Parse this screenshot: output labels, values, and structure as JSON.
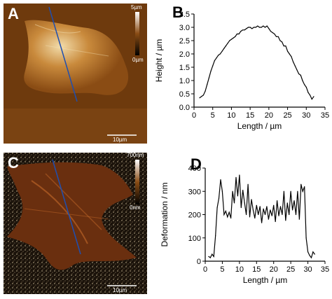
{
  "panels": {
    "a": {
      "letter": "A",
      "colorbar_max": "5µm",
      "colorbar_min": "0µm",
      "scale_bar": "10µm",
      "colors": {
        "dark": "#3a1d06",
        "mid": "#9b5a1c",
        "light": "#e8c88a"
      }
    },
    "b": {
      "letter": "B"
    },
    "c": {
      "letter": "C",
      "colorbar_max": "700nm",
      "colorbar_min": "0nm",
      "scale_bar": "10µm",
      "colors": {
        "dark": "#1a0d05",
        "mid": "#7a3a12",
        "light": "#f0d8a8"
      }
    },
    "d": {
      "letter": "D"
    }
  },
  "chart_data": [
    {
      "type": "line",
      "xlabel": "Length / µm",
      "ylabel": "Height / µm",
      "xlim": [
        0,
        35
      ],
      "ylim": [
        0,
        3.5
      ],
      "xticks": [
        0,
        5,
        10,
        15,
        20,
        25,
        30,
        35
      ],
      "yticks": [
        0.0,
        0.5,
        1.0,
        1.5,
        2.0,
        2.5,
        3.0,
        3.5
      ],
      "ytick_labels": [
        "0.0",
        "0.5",
        "1.0",
        "1.5",
        "2.0",
        "2.5",
        "3.0",
        "3.5"
      ],
      "x": [
        1.5,
        2.0,
        2.5,
        3.0,
        3.5,
        4.0,
        4.5,
        5.0,
        5.5,
        6.0,
        6.5,
        7.0,
        7.5,
        8.0,
        8.5,
        9.0,
        9.5,
        10.0,
        10.5,
        11.0,
        11.5,
        12.0,
        12.5,
        13.0,
        13.5,
        14.0,
        14.5,
        15.0,
        15.5,
        16.0,
        16.5,
        17.0,
        17.5,
        18.0,
        18.5,
        19.0,
        19.5,
        20.0,
        20.5,
        21.0,
        21.5,
        22.0,
        22.5,
        23.0,
        23.5,
        24.0,
        24.5,
        25.0,
        25.5,
        26.0,
        26.5,
        27.0,
        27.5,
        28.0,
        28.5,
        29.0,
        29.5,
        30.0,
        30.5,
        31.0,
        31.5,
        32.0
      ],
      "y": [
        0.35,
        0.4,
        0.45,
        0.6,
        0.85,
        1.1,
        1.35,
        1.55,
        1.75,
        1.85,
        1.95,
        2.0,
        2.1,
        2.2,
        2.3,
        2.4,
        2.5,
        2.55,
        2.6,
        2.65,
        2.75,
        2.75,
        2.85,
        2.9,
        2.9,
        2.95,
        3.0,
        3.0,
        2.95,
        3.0,
        3.0,
        3.05,
        3.0,
        3.0,
        3.05,
        3.0,
        3.05,
        2.95,
        2.85,
        2.8,
        2.75,
        2.65,
        2.65,
        2.5,
        2.45,
        2.3,
        2.3,
        2.1,
        2.0,
        1.9,
        1.7,
        1.55,
        1.4,
        1.25,
        1.2,
        1.0,
        0.85,
        0.75,
        0.55,
        0.45,
        0.3,
        0.4
      ]
    },
    {
      "type": "line",
      "xlabel": "Length / µm",
      "ylabel": "Deformation / nm",
      "xlim": [
        0,
        35
      ],
      "ylim": [
        0,
        400
      ],
      "xticks": [
        0,
        5,
        10,
        15,
        20,
        25,
        30,
        35
      ],
      "yticks": [
        0,
        100,
        200,
        300,
        400
      ],
      "ytick_labels": [
        "0",
        "100",
        "200",
        "300",
        "400"
      ],
      "x": [
        1.0,
        1.5,
        2.0,
        2.5,
        3.0,
        3.5,
        4.0,
        4.5,
        5.0,
        5.5,
        6.0,
        6.5,
        7.0,
        7.5,
        8.0,
        8.5,
        9.0,
        9.5,
        10.0,
        10.5,
        11.0,
        11.5,
        12.0,
        12.5,
        13.0,
        13.5,
        14.0,
        14.5,
        15.0,
        15.5,
        16.0,
        16.5,
        17.0,
        17.5,
        18.0,
        18.5,
        19.0,
        19.5,
        20.0,
        20.5,
        21.0,
        21.5,
        22.0,
        22.5,
        23.0,
        23.5,
        24.0,
        24.5,
        25.0,
        25.5,
        26.0,
        26.5,
        27.0,
        27.5,
        28.0,
        28.5,
        29.0,
        29.5,
        30.0,
        30.5,
        31.0,
        31.5,
        32.0
      ],
      "y": [
        20,
        15,
        30,
        20,
        110,
        230,
        270,
        350,
        300,
        200,
        215,
        190,
        210,
        185,
        300,
        250,
        360,
        280,
        370,
        230,
        305,
        250,
        200,
        330,
        190,
        265,
        220,
        185,
        240,
        200,
        235,
        165,
        225,
        200,
        235,
        180,
        220,
        195,
        240,
        170,
        260,
        195,
        235,
        200,
        300,
        175,
        250,
        200,
        300,
        220,
        260,
        200,
        300,
        180,
        330,
        300,
        320,
        100,
        40,
        25,
        15,
        40,
        30
      ]
    }
  ]
}
